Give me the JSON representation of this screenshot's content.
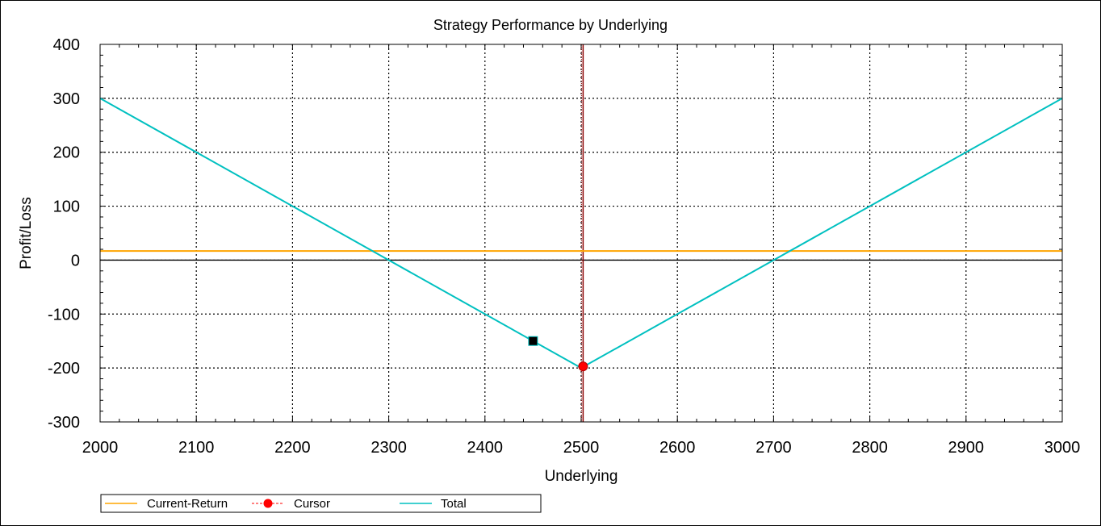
{
  "chart_data": {
    "type": "line",
    "title": "Strategy Performance by Underlying",
    "xlabel": "Underlying",
    "ylabel": "Profit/Loss",
    "xlim": [
      2000,
      3000
    ],
    "ylim": [
      -300,
      400
    ],
    "x_ticks": [
      2000,
      2100,
      2200,
      2300,
      2400,
      2500,
      2600,
      2700,
      2800,
      2900,
      3000
    ],
    "y_ticks": [
      -300,
      -200,
      -100,
      0,
      100,
      200,
      300,
      400
    ],
    "x_tick_labels": [
      "2000",
      "2100",
      "2200",
      "2300",
      "2400",
      "2500",
      "2600",
      "2700",
      "2800",
      "2900",
      "3000"
    ],
    "y_tick_labels": [
      "-300",
      "-200",
      "-100",
      "0",
      "100",
      "200",
      "300",
      "400"
    ],
    "grid": true,
    "legend_position": "bottom-left",
    "series": [
      {
        "name": "Current-Return",
        "color": "#FFA500",
        "x": [
          2000,
          3000
        ],
        "y": [
          17,
          17
        ]
      },
      {
        "name": "Cursor",
        "color": "#FF0000",
        "marker": "circle",
        "x": [
          2502
        ],
        "y": [
          -197
        ]
      },
      {
        "name": "Total",
        "color": "#00C0C0",
        "x": [
          2000,
          2500,
          3000
        ],
        "y": [
          300,
          -200,
          300
        ]
      }
    ],
    "cursor_line": {
      "x": 2502,
      "color": "#8B0000"
    },
    "annotations": [
      {
        "type": "square-marker",
        "x": 2450,
        "y": -150,
        "color": "#000000"
      }
    ]
  }
}
